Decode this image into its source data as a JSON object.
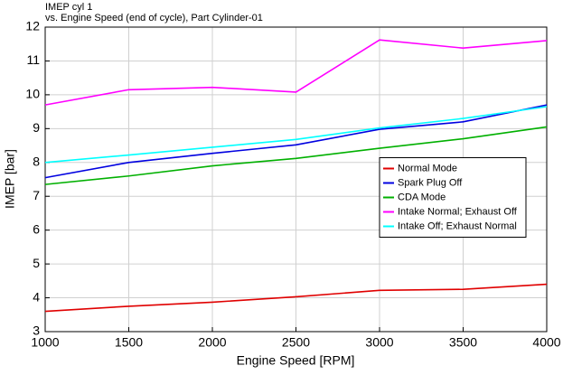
{
  "chart_data": {
    "type": "line",
    "title": "IMEP cyl 1",
    "subtitle": "vs. Engine Speed (end of cycle), Part Cylinder-01",
    "x_label": "Engine Speed [RPM]",
    "y_label": "IMEP [bar]",
    "x": [
      1000,
      1500,
      2000,
      2500,
      3000,
      3500,
      4000
    ],
    "series": [
      {
        "name": "Normal Mode",
        "color": "#e00000",
        "values": [
          3.6,
          3.75,
          3.87,
          4.03,
          4.22,
          4.25,
          4.4
        ]
      },
      {
        "name": "Spark Plug Off",
        "color": "#0000e0",
        "values": [
          7.55,
          8.0,
          8.27,
          8.52,
          8.98,
          9.2,
          9.7
        ]
      },
      {
        "name": "CDA Mode",
        "color": "#00b000",
        "values": [
          7.35,
          7.6,
          7.9,
          8.12,
          8.42,
          8.7,
          9.05
        ]
      },
      {
        "name": "Intake Normal; Exhaust Off",
        "color": "#ff00ff",
        "values": [
          9.7,
          10.15,
          10.22,
          10.08,
          11.62,
          11.38,
          11.6
        ]
      },
      {
        "name": "Intake Off; Exhaust Normal",
        "color": "#00ffff",
        "values": [
          8.0,
          8.22,
          8.45,
          8.68,
          9.02,
          9.3,
          9.65
        ]
      }
    ],
    "xlim": [
      1000,
      4000
    ],
    "xticks": [
      1000,
      1500,
      2000,
      2500,
      3000,
      3500,
      4000
    ],
    "ylim": [
      3,
      12
    ],
    "yticks": [
      3,
      4,
      5,
      6,
      7,
      8,
      9,
      10,
      11,
      12
    ],
    "grid": true,
    "legend_position": "right"
  }
}
